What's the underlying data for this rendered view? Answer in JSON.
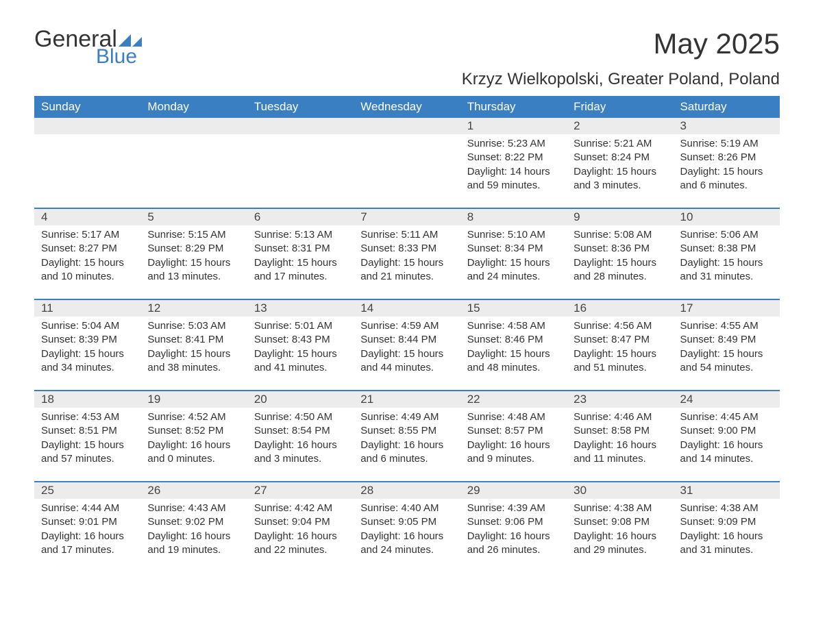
{
  "logo": {
    "word1": "General",
    "word2": "Blue"
  },
  "title": "May 2025",
  "location": "Krzyz Wielkopolski, Greater Poland, Poland",
  "colors": {
    "header_bg": "#3a7fc1",
    "header_text": "#ffffff",
    "daynum_bg": "#ececec",
    "rule": "#3a7fc1",
    "text": "#333333",
    "logo_blue": "#3a7fc1"
  },
  "day_labels": [
    "Sunday",
    "Monday",
    "Tuesday",
    "Wednesday",
    "Thursday",
    "Friday",
    "Saturday"
  ],
  "weeks": [
    [
      {
        "n": "",
        "sunrise": "",
        "sunset": "",
        "daylight": ""
      },
      {
        "n": "",
        "sunrise": "",
        "sunset": "",
        "daylight": ""
      },
      {
        "n": "",
        "sunrise": "",
        "sunset": "",
        "daylight": ""
      },
      {
        "n": "",
        "sunrise": "",
        "sunset": "",
        "daylight": ""
      },
      {
        "n": "1",
        "sunrise": "Sunrise: 5:23 AM",
        "sunset": "Sunset: 8:22 PM",
        "daylight": "Daylight: 14 hours and 59 minutes."
      },
      {
        "n": "2",
        "sunrise": "Sunrise: 5:21 AM",
        "sunset": "Sunset: 8:24 PM",
        "daylight": "Daylight: 15 hours and 3 minutes."
      },
      {
        "n": "3",
        "sunrise": "Sunrise: 5:19 AM",
        "sunset": "Sunset: 8:26 PM",
        "daylight": "Daylight: 15 hours and 6 minutes."
      }
    ],
    [
      {
        "n": "4",
        "sunrise": "Sunrise: 5:17 AM",
        "sunset": "Sunset: 8:27 PM",
        "daylight": "Daylight: 15 hours and 10 minutes."
      },
      {
        "n": "5",
        "sunrise": "Sunrise: 5:15 AM",
        "sunset": "Sunset: 8:29 PM",
        "daylight": "Daylight: 15 hours and 13 minutes."
      },
      {
        "n": "6",
        "sunrise": "Sunrise: 5:13 AM",
        "sunset": "Sunset: 8:31 PM",
        "daylight": "Daylight: 15 hours and 17 minutes."
      },
      {
        "n": "7",
        "sunrise": "Sunrise: 5:11 AM",
        "sunset": "Sunset: 8:33 PM",
        "daylight": "Daylight: 15 hours and 21 minutes."
      },
      {
        "n": "8",
        "sunrise": "Sunrise: 5:10 AM",
        "sunset": "Sunset: 8:34 PM",
        "daylight": "Daylight: 15 hours and 24 minutes."
      },
      {
        "n": "9",
        "sunrise": "Sunrise: 5:08 AM",
        "sunset": "Sunset: 8:36 PM",
        "daylight": "Daylight: 15 hours and 28 minutes."
      },
      {
        "n": "10",
        "sunrise": "Sunrise: 5:06 AM",
        "sunset": "Sunset: 8:38 PM",
        "daylight": "Daylight: 15 hours and 31 minutes."
      }
    ],
    [
      {
        "n": "11",
        "sunrise": "Sunrise: 5:04 AM",
        "sunset": "Sunset: 8:39 PM",
        "daylight": "Daylight: 15 hours and 34 minutes."
      },
      {
        "n": "12",
        "sunrise": "Sunrise: 5:03 AM",
        "sunset": "Sunset: 8:41 PM",
        "daylight": "Daylight: 15 hours and 38 minutes."
      },
      {
        "n": "13",
        "sunrise": "Sunrise: 5:01 AM",
        "sunset": "Sunset: 8:43 PM",
        "daylight": "Daylight: 15 hours and 41 minutes."
      },
      {
        "n": "14",
        "sunrise": "Sunrise: 4:59 AM",
        "sunset": "Sunset: 8:44 PM",
        "daylight": "Daylight: 15 hours and 44 minutes."
      },
      {
        "n": "15",
        "sunrise": "Sunrise: 4:58 AM",
        "sunset": "Sunset: 8:46 PM",
        "daylight": "Daylight: 15 hours and 48 minutes."
      },
      {
        "n": "16",
        "sunrise": "Sunrise: 4:56 AM",
        "sunset": "Sunset: 8:47 PM",
        "daylight": "Daylight: 15 hours and 51 minutes."
      },
      {
        "n": "17",
        "sunrise": "Sunrise: 4:55 AM",
        "sunset": "Sunset: 8:49 PM",
        "daylight": "Daylight: 15 hours and 54 minutes."
      }
    ],
    [
      {
        "n": "18",
        "sunrise": "Sunrise: 4:53 AM",
        "sunset": "Sunset: 8:51 PM",
        "daylight": "Daylight: 15 hours and 57 minutes."
      },
      {
        "n": "19",
        "sunrise": "Sunrise: 4:52 AM",
        "sunset": "Sunset: 8:52 PM",
        "daylight": "Daylight: 16 hours and 0 minutes."
      },
      {
        "n": "20",
        "sunrise": "Sunrise: 4:50 AM",
        "sunset": "Sunset: 8:54 PM",
        "daylight": "Daylight: 16 hours and 3 minutes."
      },
      {
        "n": "21",
        "sunrise": "Sunrise: 4:49 AM",
        "sunset": "Sunset: 8:55 PM",
        "daylight": "Daylight: 16 hours and 6 minutes."
      },
      {
        "n": "22",
        "sunrise": "Sunrise: 4:48 AM",
        "sunset": "Sunset: 8:57 PM",
        "daylight": "Daylight: 16 hours and 9 minutes."
      },
      {
        "n": "23",
        "sunrise": "Sunrise: 4:46 AM",
        "sunset": "Sunset: 8:58 PM",
        "daylight": "Daylight: 16 hours and 11 minutes."
      },
      {
        "n": "24",
        "sunrise": "Sunrise: 4:45 AM",
        "sunset": "Sunset: 9:00 PM",
        "daylight": "Daylight: 16 hours and 14 minutes."
      }
    ],
    [
      {
        "n": "25",
        "sunrise": "Sunrise: 4:44 AM",
        "sunset": "Sunset: 9:01 PM",
        "daylight": "Daylight: 16 hours and 17 minutes."
      },
      {
        "n": "26",
        "sunrise": "Sunrise: 4:43 AM",
        "sunset": "Sunset: 9:02 PM",
        "daylight": "Daylight: 16 hours and 19 minutes."
      },
      {
        "n": "27",
        "sunrise": "Sunrise: 4:42 AM",
        "sunset": "Sunset: 9:04 PM",
        "daylight": "Daylight: 16 hours and 22 minutes."
      },
      {
        "n": "28",
        "sunrise": "Sunrise: 4:40 AM",
        "sunset": "Sunset: 9:05 PM",
        "daylight": "Daylight: 16 hours and 24 minutes."
      },
      {
        "n": "29",
        "sunrise": "Sunrise: 4:39 AM",
        "sunset": "Sunset: 9:06 PM",
        "daylight": "Daylight: 16 hours and 26 minutes."
      },
      {
        "n": "30",
        "sunrise": "Sunrise: 4:38 AM",
        "sunset": "Sunset: 9:08 PM",
        "daylight": "Daylight: 16 hours and 29 minutes."
      },
      {
        "n": "31",
        "sunrise": "Sunrise: 4:38 AM",
        "sunset": "Sunset: 9:09 PM",
        "daylight": "Daylight: 16 hours and 31 minutes."
      }
    ]
  ]
}
